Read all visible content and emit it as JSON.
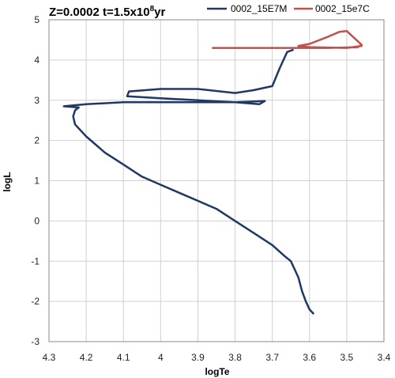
{
  "chart_data": {
    "type": "line",
    "title_prefix": "Z=0.0002 t=1.5x10",
    "title_exponent": "8",
    "title_suffix": "yr",
    "xlabel": "logTe",
    "ylabel": "logL",
    "xlim": [
      4.3,
      3.4
    ],
    "ylim": [
      -3,
      5
    ],
    "x_ticks": [
      4.3,
      4.2,
      4.1,
      4,
      3.9,
      3.8,
      3.7,
      3.6,
      3.5,
      3.4
    ],
    "x_tick_labels": [
      "4.3",
      "4.2",
      "4.1",
      "4",
      "3.9",
      "3.8",
      "3.7",
      "3.6",
      "3.5",
      "3.4"
    ],
    "y_ticks": [
      5,
      4,
      3,
      2,
      1,
      0,
      -1,
      -2,
      -3
    ],
    "y_tick_labels": [
      "5",
      "4",
      "3",
      "2",
      "1",
      "0",
      "-1",
      "-2",
      "-3"
    ],
    "grid": true,
    "legend_position": "top",
    "series": [
      {
        "name": "0002_15E7M",
        "color": "#1f3864",
        "points": [
          [
            3.59,
            -2.3
          ],
          [
            3.6,
            -2.2
          ],
          [
            3.61,
            -2.0
          ],
          [
            3.62,
            -1.75
          ],
          [
            3.63,
            -1.4
          ],
          [
            3.65,
            -1.0
          ],
          [
            3.67,
            -0.85
          ],
          [
            3.7,
            -0.6
          ],
          [
            3.75,
            -0.3
          ],
          [
            3.8,
            0.0
          ],
          [
            3.85,
            0.3
          ],
          [
            3.9,
            0.5
          ],
          [
            3.95,
            0.7
          ],
          [
            4.0,
            0.9
          ],
          [
            4.05,
            1.1
          ],
          [
            4.1,
            1.4
          ],
          [
            4.15,
            1.7
          ],
          [
            4.2,
            2.1
          ],
          [
            4.23,
            2.4
          ],
          [
            4.235,
            2.6
          ],
          [
            4.23,
            2.75
          ],
          [
            4.22,
            2.82
          ],
          [
            4.26,
            2.85
          ],
          [
            4.2,
            2.9
          ],
          [
            4.1,
            2.95
          ],
          [
            4.0,
            2.95
          ],
          [
            3.9,
            2.95
          ],
          [
            3.8,
            2.95
          ],
          [
            3.72,
            2.98
          ],
          [
            3.735,
            2.9
          ],
          [
            3.8,
            2.95
          ],
          [
            3.9,
            3.0
          ],
          [
            4.0,
            3.05
          ],
          [
            4.09,
            3.1
          ],
          [
            4.085,
            3.22
          ],
          [
            4.0,
            3.28
          ],
          [
            3.9,
            3.28
          ],
          [
            3.8,
            3.18
          ],
          [
            3.75,
            3.25
          ],
          [
            3.7,
            3.35
          ],
          [
            3.68,
            3.8
          ],
          [
            3.66,
            4.2
          ],
          [
            3.645,
            4.25
          ]
        ]
      },
      {
        "name": "0002_15e7C",
        "color": "#c0504d",
        "points": [
          [
            3.86,
            4.3
          ],
          [
            3.75,
            4.3
          ],
          [
            3.65,
            4.3
          ],
          [
            3.55,
            4.3
          ],
          [
            3.47,
            4.32
          ],
          [
            3.46,
            4.38
          ],
          [
            3.48,
            4.55
          ],
          [
            3.5,
            4.72
          ],
          [
            3.52,
            4.7
          ],
          [
            3.55,
            4.58
          ],
          [
            3.6,
            4.4
          ],
          [
            3.63,
            4.35
          ],
          [
            3.6,
            4.32
          ],
          [
            3.5,
            4.3
          ],
          [
            3.46,
            4.35
          ]
        ]
      }
    ]
  }
}
